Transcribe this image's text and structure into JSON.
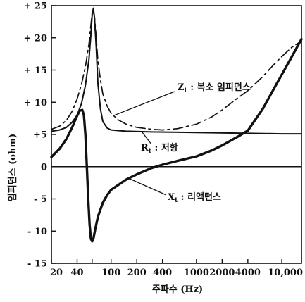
{
  "chart_data": {
    "type": "line",
    "title": "",
    "xlabel": "주파수 (Hz)",
    "ylabel": "임피던스 (ohm)",
    "x_scale": "log",
    "x_ticks": [
      20,
      40,
      60,
      100,
      200,
      400,
      1000,
      2000,
      4000,
      10000
    ],
    "x_tick_labels": [
      "20",
      "40",
      "",
      "100",
      "200",
      "400",
      "1000",
      "2000",
      "4000",
      "10,000"
    ],
    "y_ticks": [
      -15,
      -10,
      -5,
      0,
      5,
      10,
      15,
      20,
      25
    ],
    "y_tick_labels": [
      "- 15",
      "- 10",
      "- 5",
      "0",
      "+5",
      "+ 10",
      "+ 15",
      "+ 20",
      "+ 25"
    ],
    "xlim": [
      20,
      17000
    ],
    "ylim": [
      -15,
      25
    ],
    "grid": false,
    "zero_line": true,
    "series": [
      {
        "name": "Z_t : 복소 임피던스",
        "label_main": "Z",
        "label_sub": "t",
        "label_rest": ": 복소 임피던스",
        "style": "dashdot",
        "color": "#111111",
        "points": [
          [
            20,
            5.8
          ],
          [
            25,
            6.3
          ],
          [
            30,
            7.2
          ],
          [
            35,
            8.6
          ],
          [
            40,
            10.5
          ],
          [
            45,
            12.8
          ],
          [
            50,
            15.5
          ],
          [
            55,
            19.0
          ],
          [
            58,
            22.0
          ],
          [
            60,
            23.8
          ],
          [
            62,
            24.3
          ],
          [
            64,
            23.2
          ],
          [
            67,
            20.0
          ],
          [
            70,
            16.5
          ],
          [
            75,
            13.5
          ],
          [
            80,
            11.3
          ],
          [
            90,
            9.4
          ],
          [
            100,
            8.3
          ],
          [
            120,
            7.3
          ],
          [
            150,
            6.6
          ],
          [
            200,
            6.1
          ],
          [
            300,
            5.8
          ],
          [
            400,
            5.7
          ],
          [
            600,
            5.9
          ],
          [
            1000,
            6.6
          ],
          [
            1500,
            7.7
          ],
          [
            2000,
            8.8
          ],
          [
            3000,
            10.6
          ],
          [
            4000,
            11.8
          ],
          [
            6000,
            14.0
          ],
          [
            8000,
            15.8
          ],
          [
            10000,
            17.1
          ],
          [
            13000,
            18.5
          ],
          [
            17000,
            19.5
          ]
        ]
      },
      {
        "name": "R_t : 저항",
        "label_main": "R",
        "label_sub": "t",
        "label_rest": ": 저항",
        "style": "solid",
        "color": "#111111",
        "points": [
          [
            20,
            5.5
          ],
          [
            25,
            5.7
          ],
          [
            30,
            6.1
          ],
          [
            35,
            6.9
          ],
          [
            40,
            8.0
          ],
          [
            45,
            9.8
          ],
          [
            50,
            12.6
          ],
          [
            55,
            16.6
          ],
          [
            58,
            20.5
          ],
          [
            60,
            23.5
          ],
          [
            62,
            24.6
          ],
          [
            64,
            23.0
          ],
          [
            67,
            18.5
          ],
          [
            70,
            13.0
          ],
          [
            75,
            9.0
          ],
          [
            80,
            7.0
          ],
          [
            90,
            6.0
          ],
          [
            100,
            5.7
          ],
          [
            150,
            5.5
          ],
          [
            300,
            5.4
          ],
          [
            1000,
            5.3
          ],
          [
            3000,
            5.2
          ],
          [
            10000,
            5.1
          ],
          [
            17000,
            5.1
          ]
        ]
      },
      {
        "name": "X_t : 리액턴스",
        "label_main": "X",
        "label_sub": "t",
        "label_rest": ": 리액턴스",
        "style": "solid-bold",
        "color": "#111111",
        "points": [
          [
            20,
            1.5
          ],
          [
            25,
            2.8
          ],
          [
            30,
            4.3
          ],
          [
            35,
            6.1
          ],
          [
            40,
            7.9
          ],
          [
            43,
            8.7
          ],
          [
            46,
            8.8
          ],
          [
            48,
            8.0
          ],
          [
            50,
            5.0
          ],
          [
            52,
            0.0
          ],
          [
            54,
            -5.0
          ],
          [
            56,
            -9.0
          ],
          [
            58,
            -11.2
          ],
          [
            60,
            -11.6
          ],
          [
            62,
            -11.2
          ],
          [
            65,
            -9.8
          ],
          [
            70,
            -7.8
          ],
          [
            80,
            -5.6
          ],
          [
            90,
            -4.4
          ],
          [
            100,
            -3.6
          ],
          [
            150,
            -2.0
          ],
          [
            200,
            -1.2
          ],
          [
            300,
            -0.2
          ],
          [
            400,
            0.3
          ],
          [
            600,
            0.9
          ],
          [
            1000,
            1.6
          ],
          [
            1500,
            2.5
          ],
          [
            2000,
            3.3
          ],
          [
            3000,
            4.6
          ],
          [
            4000,
            5.6
          ],
          [
            6000,
            9.0
          ],
          [
            8000,
            12.0
          ],
          [
            10000,
            14.3
          ],
          [
            13000,
            17.0
          ],
          [
            17000,
            19.8
          ]
        ]
      }
    ]
  }
}
